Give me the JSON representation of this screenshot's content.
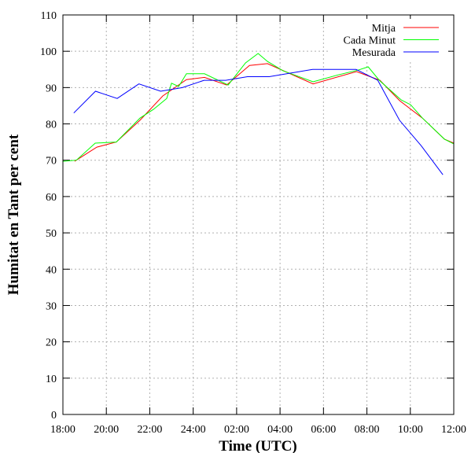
{
  "chart_data": {
    "type": "line",
    "title": "",
    "xlabel": "Time (UTC)",
    "ylabel": "Humitat en Tant per cent",
    "x_unit": "hours since 18:00",
    "xlim": [
      0,
      18
    ],
    "ylim": [
      0,
      110
    ],
    "grid": true,
    "legend_position": "top-right",
    "x_ticks": [
      "18:00",
      "20:00",
      "22:00",
      "24:00",
      "02:00",
      "04:00",
      "06:00",
      "08:00",
      "10:00",
      "12:00"
    ],
    "y_ticks": [
      "0",
      "10",
      "20",
      "30",
      "40",
      "50",
      "60",
      "70",
      "80",
      "90",
      "100",
      "110"
    ],
    "series": [
      {
        "name": "Mitja",
        "color": "#ff0000",
        "points": [
          [
            0.54,
            69.7
          ],
          [
            1.56,
            73.6
          ],
          [
            2.46,
            75
          ],
          [
            3.55,
            81
          ],
          [
            4.6,
            87.7
          ],
          [
            5.69,
            92.2
          ],
          [
            6.52,
            92.8
          ],
          [
            7.54,
            90.7
          ],
          [
            8.59,
            96.1
          ],
          [
            9.42,
            96.6
          ],
          [
            11.52,
            91
          ],
          [
            13.52,
            94.4
          ],
          [
            14.6,
            92
          ],
          [
            15.51,
            86.4
          ],
          [
            16.56,
            81.6
          ],
          [
            17.57,
            75.8
          ],
          [
            18,
            74.7
          ]
        ]
      },
      {
        "name": "Cada Minut",
        "color": "#00ff00",
        "points": [
          [
            0,
            69.7
          ],
          [
            0.62,
            70
          ],
          [
            1.49,
            74.7
          ],
          [
            2.46,
            75
          ],
          [
            3.55,
            81.6
          ],
          [
            4.17,
            84
          ],
          [
            4.78,
            87
          ],
          [
            5.0,
            91.2
          ],
          [
            5.33,
            90.3
          ],
          [
            5.69,
            93.8
          ],
          [
            6.52,
            93.8
          ],
          [
            7.61,
            90.7
          ],
          [
            8.41,
            96.8
          ],
          [
            8.99,
            99.4
          ],
          [
            9.42,
            97.2
          ],
          [
            10.14,
            94.6
          ],
          [
            11.52,
            91.6
          ],
          [
            12.68,
            93.5
          ],
          [
            13.59,
            94.8
          ],
          [
            14.06,
            95.7
          ],
          [
            14.57,
            92
          ],
          [
            15.58,
            86.6
          ],
          [
            16.01,
            85.3
          ],
          [
            16.56,
            81.6
          ],
          [
            17.57,
            75.8
          ],
          [
            18,
            74.5
          ]
        ]
      },
      {
        "name": "Mesurada",
        "color": "#0000ff",
        "points": [
          [
            0.5,
            83
          ],
          [
            1.5,
            89
          ],
          [
            2.5,
            87
          ],
          [
            3.5,
            91
          ],
          [
            4.5,
            89
          ],
          [
            5.5,
            90
          ],
          [
            6.5,
            92
          ],
          [
            7.5,
            92
          ],
          [
            8.5,
            93
          ],
          [
            9.5,
            93
          ],
          [
            10.5,
            94
          ],
          [
            11.5,
            95
          ],
          [
            12.5,
            95
          ],
          [
            13.5,
            95
          ],
          [
            14.5,
            92
          ],
          [
            15.5,
            81
          ],
          [
            16.5,
            74
          ],
          [
            17.5,
            66
          ]
        ]
      }
    ]
  }
}
